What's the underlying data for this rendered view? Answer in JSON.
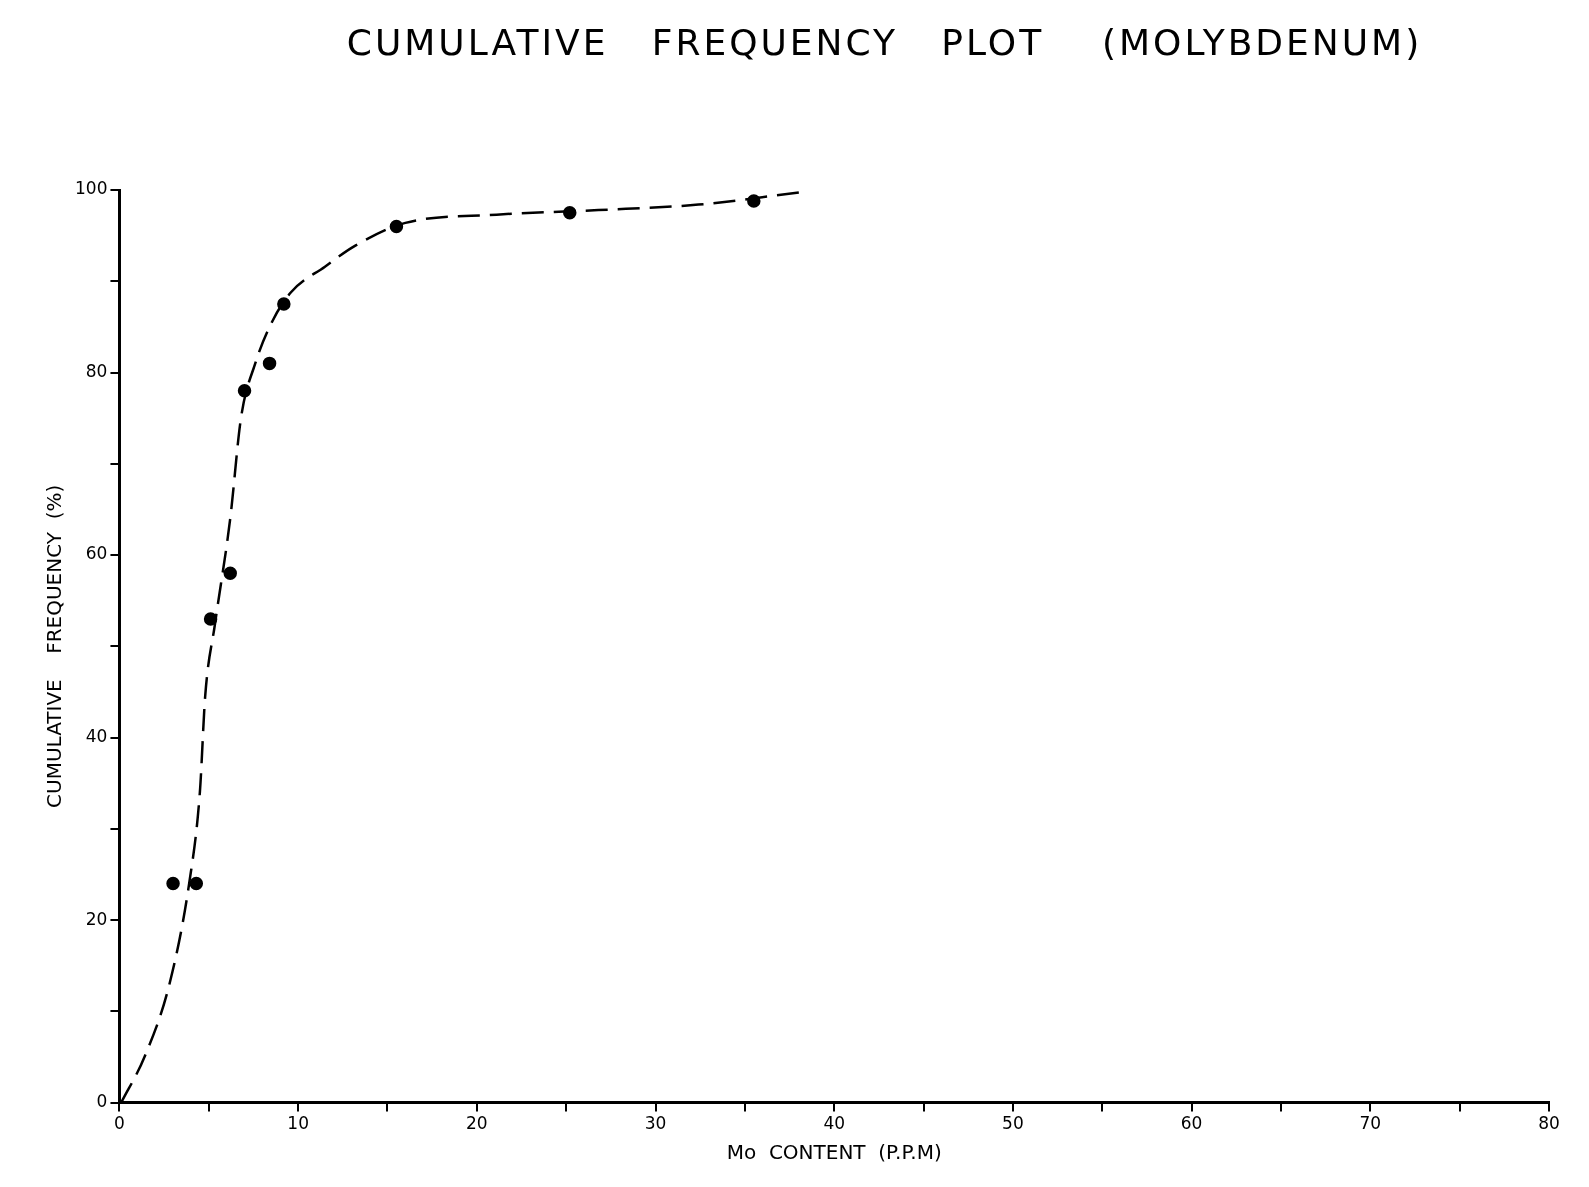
{
  "chart_data": {
    "type": "scatter",
    "title": "CUMULATIVE   FREQUENCY   PLOT    (MOLYBDENUM)",
    "xlabel": "Mo  CONTENT  (P.P.M)",
    "ylabel": "CUMULATIVE    FREQUENCY  (%)",
    "xlim": [
      0,
      80
    ],
    "xticks": [
      0,
      {
        "value": 5,
        "label": null
      },
      10,
      {
        "value": 15,
        "label": null
      },
      20,
      {
        "value": 25,
        "label": null
      },
      30,
      {
        "value": 35,
        "label": null
      },
      40,
      {
        "value": 45,
        "label": null
      },
      50,
      {
        "value": 55,
        "label": null
      },
      60,
      {
        "value": 65,
        "label": null
      },
      70,
      {
        "value": 75,
        "label": null
      },
      80
    ],
    "ylim": [
      0,
      100
    ],
    "yticks": [
      0,
      {
        "value": 10,
        "label": null
      },
      20,
      {
        "value": 30,
        "label": null
      },
      40,
      {
        "value": 50,
        "label": null
      },
      60,
      {
        "value": 70,
        "label": null
      },
      80,
      {
        "value": 90,
        "label": null
      },
      100
    ],
    "legend": false,
    "series": [
      {
        "type": "scatter",
        "color": "#000000",
        "marker": "circle",
        "x": [
          3.0,
          4.3,
          5.1,
          6.2,
          7.0,
          8.4,
          9.2,
          15.5,
          25.2,
          35.5
        ],
        "values": [
          24,
          24,
          53,
          58,
          78,
          81,
          87.5,
          96,
          97.5,
          98.8
        ]
      },
      {
        "type": "line",
        "color": "#000000",
        "marker": "none",
        "line_style": "dashed",
        "x": [
          0.1,
          1.4,
          2.8,
          3.9,
          4.5,
          4.8,
          5.35,
          6.2,
          6.8,
          7.6,
          8.5,
          9.6,
          11.5,
          13.2,
          16,
          21.1,
          26.8,
          32.4,
          38.3
        ],
        "values": [
          0,
          5,
          13,
          24,
          34,
          44.6,
          52.5,
          64,
          75,
          81,
          85.4,
          88.8,
          91.6,
          93.9,
          96.4,
          97.3,
          97.8,
          98.4,
          99.8
        ]
      }
    ]
  }
}
